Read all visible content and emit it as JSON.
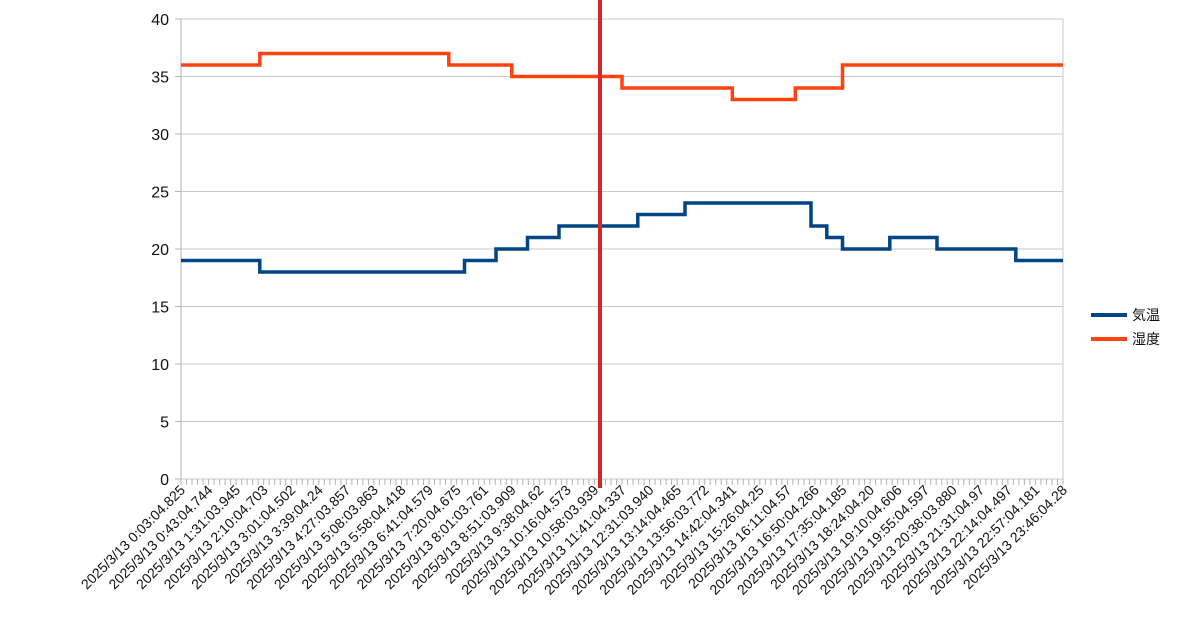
{
  "chart_data": {
    "type": "line",
    "title": "",
    "xlabel": "",
    "ylabel": "",
    "ylim": [
      0,
      40
    ],
    "y_ticks": [
      0,
      5,
      10,
      15,
      20,
      25,
      30,
      35,
      40
    ],
    "grid": true,
    "legend_position": "right",
    "marker_color": "#d62728",
    "x_tick_labels": [
      "2025/3/13 0:03:04.825",
      "2025/3/13 0:43:04.744",
      "2025/3/13 1:31:03.945",
      "2025/3/13 2:10:04.703",
      "2025/3/13 3:01:04.502",
      "2025/3/13 3:39:04.24",
      "2025/3/13 4:27:03.857",
      "2025/3/13 5:08:03.863",
      "2025/3/13 5:58:04.418",
      "2025/3/13 6:41:04.579",
      "2025/3/13 7:20:04.675",
      "2025/3/13 8:01:03.761",
      "2025/3/13 8:51:03.909",
      "2025/3/13 9:38:04.62",
      "2025/3/13 10:16:04.573",
      "2025/3/13 10:58:03.939",
      "2025/3/13 11:41:04.337",
      "2025/3/13 12:31:03.940",
      "2025/3/13 13:14:04.465",
      "2025/3/13 13:56:03.772",
      "2025/3/13 14:42:04.341",
      "2025/3/13 15:26:04.25",
      "2025/3/13 16:11:04.57",
      "2025/3/13 16:50:04.266",
      "2025/3/13 17:35:04.185",
      "2025/3/13 18:24:04.20",
      "2025/3/13 19:10:04.606",
      "2025/3/13 19:55:04.597",
      "2025/3/13 20:38:03.880",
      "2025/3/13 21:31:04.97",
      "2025/3/13 22:14:04.497",
      "2025/3/13 22:57:04.181",
      "2025/3/13 23:46:04.28"
    ],
    "series": [
      {
        "name": "気温",
        "color": "#004586",
        "values": [
          19,
          19,
          19,
          19,
          19,
          18,
          18,
          18,
          18,
          18,
          18,
          18,
          18,
          18,
          18,
          18,
          18,
          18,
          19,
          19,
          20,
          20,
          21,
          21,
          22,
          22,
          22,
          22,
          22,
          23,
          23,
          23,
          24,
          24,
          24,
          24,
          24,
          24,
          24,
          24,
          22,
          21,
          20,
          20,
          20,
          21,
          21,
          21,
          20,
          20,
          20,
          20,
          20,
          19,
          19,
          19
        ]
      },
      {
        "name": "湿度",
        "color": "#ff420e",
        "values": [
          36,
          36,
          36,
          36,
          36,
          37,
          37,
          37,
          37,
          37,
          37,
          37,
          37,
          37,
          37,
          37,
          37,
          36,
          36,
          36,
          36,
          35,
          35,
          35,
          35,
          35,
          35,
          35,
          34,
          34,
          34,
          34,
          34,
          34,
          34,
          33,
          33,
          33,
          33,
          34,
          34,
          34,
          36,
          36,
          36,
          36,
          36,
          36,
          36,
          36,
          36,
          36,
          36,
          36,
          36,
          36
        ]
      }
    ]
  }
}
